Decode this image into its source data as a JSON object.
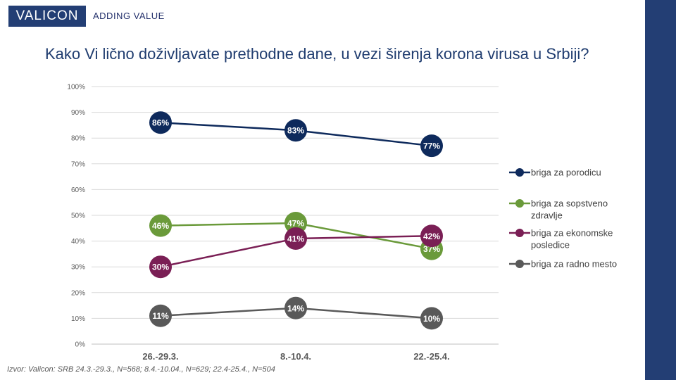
{
  "header": {
    "logo": "VALICON",
    "tagline": "ADDING VALUE"
  },
  "colors": {
    "brand": "#233e74"
  },
  "chart_data": {
    "type": "line",
    "title": "Kako Vi lično doživljavate prethodne dane, u vezi širenja korona virusa u Srbiji?",
    "categories": [
      "26.-29.3.",
      "8.-10.4.",
      "22.-25.4."
    ],
    "y_ticks": [
      "0%",
      "10%",
      "20%",
      "30%",
      "40%",
      "50%",
      "60%",
      "70%",
      "80%",
      "90%",
      "100%"
    ],
    "ylim": [
      0,
      100
    ],
    "grid": true,
    "legend_position": "right",
    "series": [
      {
        "name": "briga za porodicu",
        "values": [
          86,
          83,
          77
        ],
        "labels": [
          "86%",
          "83%",
          "77%"
        ],
        "color": "#0e2a5c"
      },
      {
        "name": "briga za sopstveno zdravlje",
        "legend_lines": [
          "briga za sopstveno",
          "zdravlje"
        ],
        "values": [
          46,
          47,
          37
        ],
        "labels": [
          "46%",
          "47%",
          "37%"
        ],
        "color": "#6a9a3a"
      },
      {
        "name": "briga za ekonomske posledice",
        "legend_lines": [
          "briga za ekonomske",
          "posledice"
        ],
        "values": [
          30,
          41,
          42
        ],
        "labels": [
          "30%",
          "41%",
          "42%"
        ],
        "color": "#7a1f55"
      },
      {
        "name": "briga za radno mesto",
        "values": [
          11,
          14,
          10
        ],
        "labels": [
          "11%",
          "14%",
          "10%"
        ],
        "color": "#595959"
      }
    ],
    "source": "Izvor: Valicon: SRB 24.3.-29.3., N=568; 8.4.-10.04., N=629; 22.4-25.4., N=504"
  }
}
